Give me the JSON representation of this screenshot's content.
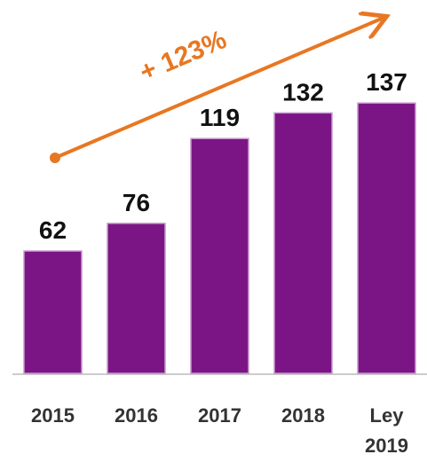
{
  "chart_data": {
    "type": "bar",
    "categories": [
      "2015",
      "2016",
      "2017",
      "2018",
      "Ley 2019"
    ],
    "values": [
      62,
      76,
      119,
      132,
      137
    ],
    "color": "#7b1585",
    "annotation": "+ 123%",
    "annotation_color": "#e87722"
  }
}
